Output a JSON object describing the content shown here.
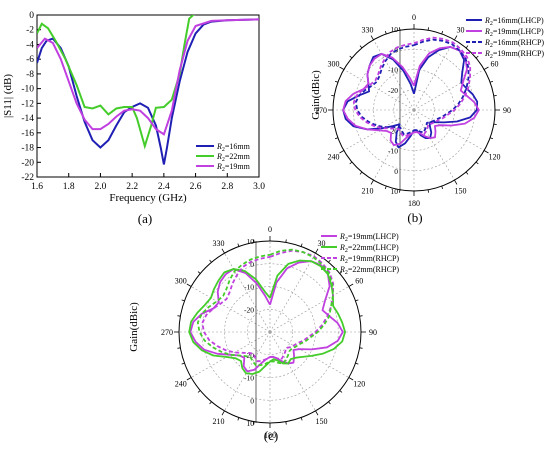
{
  "chart_data": [
    {
      "type": "line",
      "panel_label": "(a)",
      "xlabel": "Frequency (GHz)",
      "ylabel": "|S11| (dB)",
      "xlim": [
        1.6,
        3.0
      ],
      "ylim": [
        -22,
        0
      ],
      "xticks": [
        "1.6",
        "1.8",
        "2.0",
        "2.2",
        "2.4",
        "2.6",
        "2.8",
        "3.0"
      ],
      "yticks": [
        "0",
        "-2",
        "-4",
        "-6",
        "-8",
        "-10",
        "-12",
        "-14",
        "-16",
        "-18",
        "-20",
        "-22"
      ],
      "legend_position": "bottom-right",
      "series": [
        {
          "name": "R2=16mm",
          "name_main": "R",
          "name_sub": "2",
          "name_rest": "=16mm",
          "color": "#1f1fb4",
          "dash": "solid",
          "points": [
            [
              1.6,
              -6.5
            ],
            [
              1.63,
              -4.5
            ],
            [
              1.66,
              -3.5
            ],
            [
              1.7,
              -3.2
            ],
            [
              1.75,
              -4.5
            ],
            [
              1.8,
              -7
            ],
            [
              1.85,
              -11
            ],
            [
              1.9,
              -14.5
            ],
            [
              1.95,
              -17
            ],
            [
              2.0,
              -18
            ],
            [
              2.05,
              -17
            ],
            [
              2.1,
              -15
            ],
            [
              2.15,
              -13.2
            ],
            [
              2.2,
              -12.5
            ],
            [
              2.25,
              -12
            ],
            [
              2.3,
              -12.6
            ],
            [
              2.35,
              -15
            ],
            [
              2.38,
              -18
            ],
            [
              2.4,
              -20.3
            ],
            [
              2.42,
              -18
            ],
            [
              2.45,
              -14
            ],
            [
              2.5,
              -9
            ],
            [
              2.55,
              -5
            ],
            [
              2.6,
              -2.5
            ],
            [
              2.65,
              -1.3
            ],
            [
              2.7,
              -0.9
            ],
            [
              2.8,
              -0.7
            ],
            [
              3.0,
              -0.6
            ]
          ]
        },
        {
          "name": "R2=22mm",
          "name_main": "R",
          "name_sub": "2",
          "name_rest": "=22mm",
          "color": "#44cc2a",
          "dash": "solid",
          "points": [
            [
              1.6,
              -2.5
            ],
            [
              1.63,
              -1.2
            ],
            [
              1.67,
              -1.8
            ],
            [
              1.72,
              -3.6
            ],
            [
              1.78,
              -6
            ],
            [
              1.85,
              -9.5
            ],
            [
              1.9,
              -12.5
            ],
            [
              1.95,
              -12.7
            ],
            [
              2.0,
              -12.3
            ],
            [
              2.05,
              -13.5
            ],
            [
              2.1,
              -12.7
            ],
            [
              2.15,
              -12.5
            ],
            [
              2.2,
              -12.5
            ],
            [
              2.23,
              -14
            ],
            [
              2.28,
              -17.8
            ],
            [
              2.32,
              -15
            ],
            [
              2.35,
              -12.6
            ],
            [
              2.4,
              -12.5
            ],
            [
              2.45,
              -11.5
            ],
            [
              2.5,
              -8
            ],
            [
              2.53,
              -4
            ],
            [
              2.56,
              -0.5
            ],
            [
              2.6,
              0.3
            ]
          ]
        },
        {
          "name": "R2=19mm",
          "name_main": "R",
          "name_sub": "2",
          "name_rest": "=19mm",
          "color": "#c040e0",
          "dash": "solid",
          "points": [
            [
              1.6,
              -4.5
            ],
            [
              1.65,
              -3.2
            ],
            [
              1.7,
              -3.8
            ],
            [
              1.75,
              -6
            ],
            [
              1.8,
              -9
            ],
            [
              1.85,
              -12
            ],
            [
              1.9,
              -14.2
            ],
            [
              1.95,
              -15.5
            ],
            [
              2.0,
              -15.5
            ],
            [
              2.05,
              -14.8
            ],
            [
              2.1,
              -13.8
            ],
            [
              2.15,
              -13
            ],
            [
              2.2,
              -12.8
            ],
            [
              2.25,
              -13
            ],
            [
              2.3,
              -14
            ],
            [
              2.35,
              -15.5
            ],
            [
              2.4,
              -16.2
            ],
            [
              2.45,
              -13
            ],
            [
              2.5,
              -7.5
            ],
            [
              2.55,
              -3.5
            ],
            [
              2.6,
              -1.5
            ],
            [
              2.7,
              -0.8
            ],
            [
              2.8,
              -0.7
            ],
            [
              3.0,
              -0.6
            ]
          ]
        }
      ]
    },
    {
      "type": "polar",
      "panel_label": "(b)",
      "ylabel": "Gain(dBic)",
      "radial_ticks": [
        "10",
        "0",
        "-10",
        "-20"
      ],
      "angle_labels": [
        "0",
        "30",
        "60",
        "90",
        "120",
        "150",
        "180",
        "210",
        "240",
        "270",
        "300",
        "330"
      ],
      "legend_position": "top-right",
      "series": [
        {
          "name": "R2=16mm(LHCP)",
          "name_main": "R",
          "name_sub": "2",
          "name_rest": "=16mm(LHCP)",
          "color": "#1f1fb4",
          "dash": "solid",
          "gain": [
            -22,
            -10,
            -3,
            2,
            6,
            7,
            5,
            0,
            -3,
            -2,
            0,
            1.5,
            1,
            -2,
            -8,
            -14,
            -18,
            -20,
            -19,
            -16,
            -14,
            -15,
            -17,
            -20,
            -20,
            -17,
            -13,
            -10,
            -12,
            -16,
            -20,
            -17,
            -12,
            -5,
            1,
            4,
            5,
            3,
            -2,
            -6,
            -4,
            -1,
            1,
            3,
            2,
            -3,
            -10,
            -17
          ]
        },
        {
          "name": "R2=19mm(LHCP)",
          "name_main": "R",
          "name_sub": "2",
          "name_rest": "=19mm(LHCP)",
          "color": "#c040e0",
          "dash": "solid",
          "gain": [
            -18,
            -8,
            -1,
            3,
            6,
            7,
            6,
            3,
            -2,
            -5,
            -3,
            0,
            2,
            0,
            -4,
            -10,
            -15,
            -17,
            -15,
            -13,
            -14,
            -16,
            -18,
            -19,
            -19,
            -18,
            -16,
            -12,
            -10,
            -11,
            -14,
            -13,
            -10,
            -5,
            0,
            3,
            5,
            4,
            1,
            -3,
            -4,
            -1,
            1,
            2,
            2,
            -2,
            -8,
            -14
          ]
        },
        {
          "name": "R2=16mm(RHCP)",
          "name_main": "R",
          "name_sub": "2",
          "name_rest": "=16mm(RHCP)",
          "color": "#1f1fb4",
          "dash": "dashed",
          "gain": [
            2,
            4,
            6,
            7,
            7.5,
            7,
            6,
            4,
            1,
            -2,
            -5,
            -8,
            -11,
            -14,
            -16,
            -18,
            -19,
            -20,
            -21,
            -20,
            -19,
            -18,
            -19,
            -20,
            -20,
            -19,
            -18,
            -17,
            -18,
            -19,
            -18,
            -16,
            -13,
            -10,
            -7,
            -4,
            -2,
            -1,
            -2,
            -4,
            -6,
            -7,
            -6,
            -4,
            -2,
            0,
            1,
            1.5
          ]
        },
        {
          "name": "R2=19mm(RHCP)",
          "name_main": "R",
          "name_sub": "2",
          "name_rest": "=19mm(RHCP)",
          "color": "#c040e0",
          "dash": "dashed",
          "gain": [
            3,
            5,
            7,
            8,
            8.5,
            8,
            7,
            5,
            2,
            -1,
            -4,
            -7,
            -10,
            -13,
            -15,
            -17,
            -18,
            -19,
            -20,
            -19,
            -18,
            -17,
            -18,
            -19,
            -19,
            -18,
            -17,
            -16,
            -17,
            -18,
            -17,
            -15,
            -12,
            -9,
            -6,
            -3,
            -1,
            0,
            -1,
            -3,
            -5,
            -6,
            -5,
            -3,
            -1,
            1,
            2,
            2.5
          ]
        }
      ]
    },
    {
      "type": "polar",
      "panel_label": "(c)",
      "ylabel": "Gain(dBic)",
      "radial_ticks": [
        "10",
        "0",
        "-10",
        "-20"
      ],
      "angle_labels": [
        "0",
        "30",
        "60",
        "90",
        "120",
        "150",
        "180",
        "210",
        "240",
        "270",
        "300",
        "330"
      ],
      "legend_position": "top-right",
      "series": [
        {
          "name": "R2=19mm(LHCP)",
          "name_main": "R",
          "name_sub": "2",
          "name_rest": "=19mm(LHCP)",
          "color": "#c040e0",
          "dash": "solid",
          "gain": [
            -18,
            -8,
            -1,
            3,
            6,
            7,
            6,
            3,
            -2,
            -5,
            -3,
            0,
            2,
            0,
            -4,
            -10,
            -15,
            -17,
            -15,
            -13,
            -14,
            -16,
            -18,
            -19,
            -19,
            -18,
            -16,
            -12,
            -10,
            -11,
            -14,
            -13,
            -10,
            -5,
            0,
            3,
            5,
            4,
            1,
            -3,
            -4,
            -1,
            1,
            2,
            2,
            -2,
            -8,
            -14
          ]
        },
        {
          "name": "R2=22mm(LHCP)",
          "name_main": "R",
          "name_sub": "2",
          "name_rest": "=22mm(LHCP)",
          "color": "#44cc2a",
          "dash": "solid",
          "gain": [
            -15,
            -5,
            1,
            4,
            6,
            6.5,
            6,
            4,
            2,
            0,
            1,
            2,
            3,
            2,
            -1,
            -5,
            -9,
            -12,
            -14,
            -15,
            -14,
            -15,
            -17,
            -18,
            -17,
            -15,
            -12,
            -10,
            -9,
            -10,
            -12,
            -11,
            -8,
            -3,
            1,
            4,
            5.5,
            5,
            3,
            1,
            0,
            1,
            2,
            3,
            2,
            -1,
            -6,
            -12
          ]
        },
        {
          "name": "R2=19mm(RHCP)",
          "name_main": "R",
          "name_sub": "2",
          "name_rest": "=19mm(RHCP)",
          "color": "#c040e0",
          "dash": "dashed",
          "gain": [
            3,
            5,
            7,
            8,
            8.5,
            8,
            7,
            5,
            2,
            -1,
            -4,
            -7,
            -10,
            -13,
            -15,
            -17,
            -18,
            -19,
            -20,
            -19,
            -18,
            -17,
            -18,
            -19,
            -19,
            -18,
            -17,
            -16,
            -17,
            -18,
            -17,
            -15,
            -12,
            -9,
            -6,
            -3,
            -1,
            0,
            -1,
            -3,
            -5,
            -6,
            -5,
            -3,
            -1,
            1,
            2,
            2.5
          ]
        },
        {
          "name": "R2=22mm(RHCP)",
          "name_main": "R",
          "name_sub": "2",
          "name_rest": "=22mm(RHCP)",
          "color": "#44cc2a",
          "dash": "dashed",
          "gain": [
            4,
            6,
            7.5,
            8,
            8,
            7.5,
            6.5,
            4.5,
            2,
            -1,
            -3,
            -6,
            -9,
            -12,
            -14,
            -16,
            -17,
            -18,
            -18,
            -17,
            -16,
            -15,
            -16,
            -17,
            -17,
            -16,
            -15,
            -14,
            -15,
            -16,
            -15,
            -13,
            -10,
            -7,
            -4,
            -1,
            1,
            2,
            1,
            -1,
            -3,
            -4,
            -3,
            -1,
            1,
            2,
            3,
            3.5
          ]
        }
      ]
    }
  ]
}
